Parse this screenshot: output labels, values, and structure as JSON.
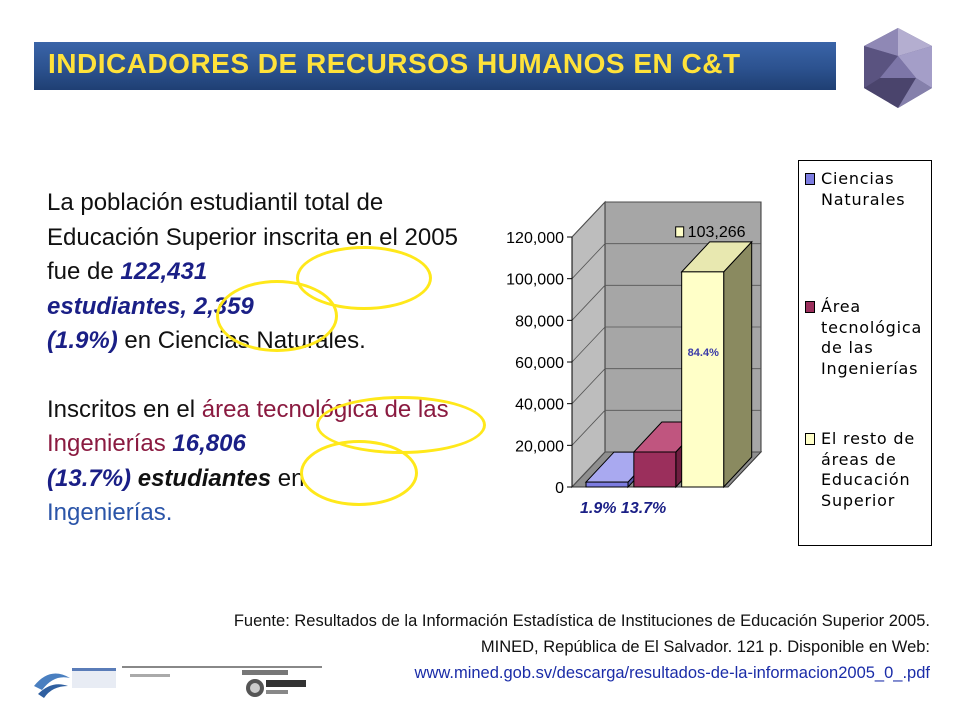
{
  "title": "INDICADORES DE RECURSOS HUMANOS EN C&T",
  "paragraph1": {
    "text1": "La población estudiantil total de Educación Superior inscrita en el 2005 fue de ",
    "total": "122,431",
    "students": "estudiantes",
    "comma": ", ",
    "ciencias_count": "2,359",
    "ciencias_pct": "(1.9%)",
    "text2": " en Ciencias Naturales."
  },
  "paragraph2": {
    "text1": "Inscritos en el ",
    "area": "área tecnológica de las Ingenierías",
    "space": " ",
    "ing_count": "16,806",
    "ing_pct": "(13.7%)",
    "students": "estudiantes",
    "text2": " en ",
    "ingenierias": "Ingenierías."
  },
  "chart_data": {
    "type": "bar",
    "categories": [
      "Ciencias Naturales",
      "Área tecnológica de las Ingenierías",
      "El resto de áreas de Educación Superior"
    ],
    "values": [
      2359,
      16806,
      103266
    ],
    "percent_labels": [
      "1.9%",
      "13.7%",
      "84.4%"
    ],
    "data_labels": [
      "",
      "",
      "103,266"
    ],
    "ylim": [
      0,
      120000
    ],
    "yticks": [
      "0",
      "20,000",
      "40,000",
      "60,000",
      "80,000",
      "100,000",
      "120,000"
    ],
    "yticks_values": [
      0,
      20000,
      40000,
      60000,
      80000,
      100000,
      120000
    ],
    "legend": [
      "Ciencias Naturales",
      "Área tecnológica de las Ingenierías",
      "El resto de áreas de Educación Superior"
    ],
    "legend_placement": "right",
    "colors": [
      "#7c7ce0",
      "#9b2f5c",
      "#ffffc8"
    ],
    "bar_label": "84.4%",
    "pct_row": "1.9% 13.7%"
  },
  "source": {
    "line1": "Fuente: Resultados de la Información Estadística de Instituciones de Educación Superior 2005.",
    "line2": "MINED, República de El Salvador. 121 p. Disponible en Web:",
    "link": "www.mined.gob.sv/descarga/resultados-de-la-informacion2005_0_.pdf"
  },
  "colors": {
    "title_band": "#2c528f",
    "title_text": "#ffe23a",
    "highlight_ellipse": "#ffe81a",
    "number_color": "#1a1f86"
  }
}
